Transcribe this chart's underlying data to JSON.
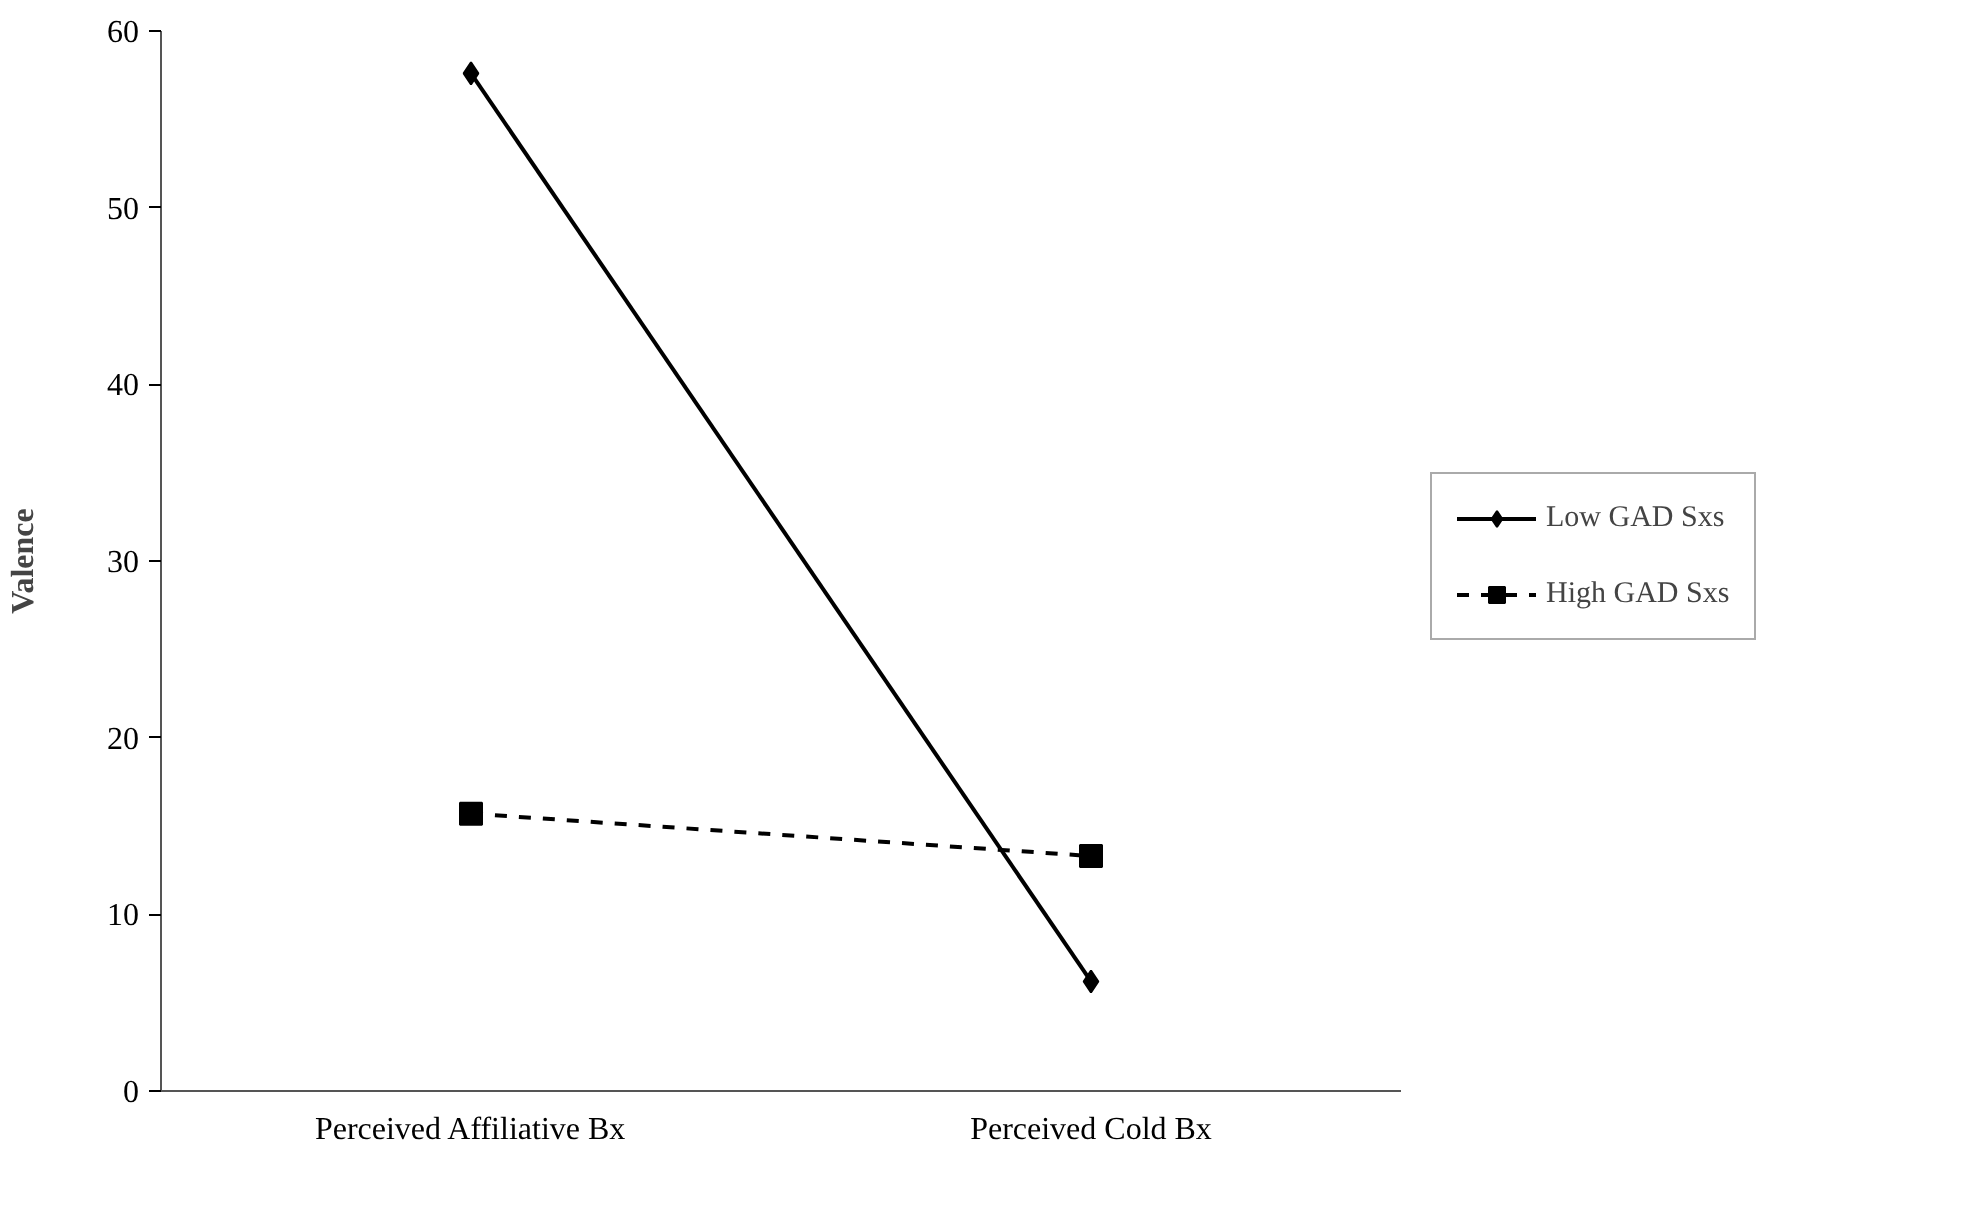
{
  "chart_data": {
    "type": "line",
    "ylabel": "Valence",
    "categories": [
      "Perceived Affiliative Bx",
      "Perceived Cold Bx"
    ],
    "series": [
      {
        "name": "Low GAD Sxs",
        "color": "#000000",
        "values": [
          57.6,
          6.2
        ],
        "marker": "diamond",
        "line_style": "solid"
      },
      {
        "name": "High GAD Sxs",
        "color": "#000000",
        "values": [
          15.7,
          13.3
        ],
        "marker": "square",
        "line_style": "dashed"
      }
    ],
    "ylim": [
      0,
      60
    ],
    "yticks": [
      0,
      10,
      20,
      30,
      40,
      50,
      60
    ],
    "grid": false,
    "legend": "right"
  }
}
